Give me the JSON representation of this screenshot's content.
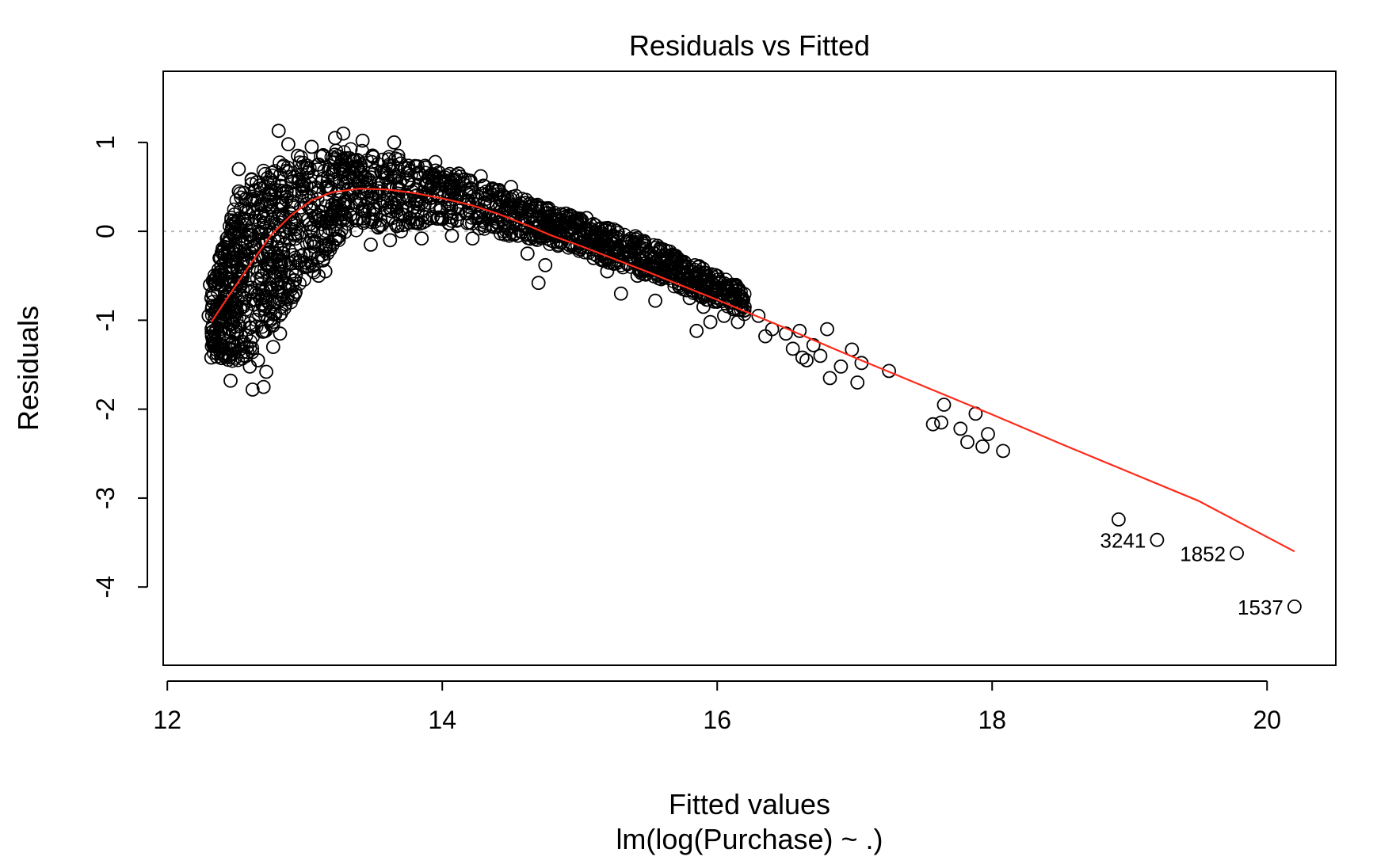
{
  "chart_data": {
    "type": "scatter",
    "title": "Residuals vs Fitted",
    "xlabel": "Fitted values",
    "subtitle": "lm(log(Purchase) ~ .)",
    "ylabel": "Residuals",
    "xlim": [
      11.97,
      20.5
    ],
    "ylim": [
      -4.88,
      1.8
    ],
    "xticks": [
      "12",
      "14",
      "16",
      "18",
      "20"
    ],
    "yticks": [
      "-4",
      "-3",
      "-2",
      "-1",
      "0",
      "1"
    ],
    "reference_line": {
      "y": 0,
      "style": "dotted",
      "color": "#bbbbbb"
    },
    "colors": {
      "points": "#000000",
      "smooth": "#ff2a1a"
    },
    "marker": "open-circle",
    "points": [
      [
        12.3,
        -0.95
      ],
      [
        12.31,
        -0.6
      ],
      [
        12.32,
        -0.75
      ],
      [
        12.33,
        -1.22
      ],
      [
        12.32,
        -1.42
      ],
      [
        12.35,
        -0.9
      ],
      [
        12.38,
        -0.3
      ],
      [
        12.4,
        -0.55
      ],
      [
        12.42,
        -0.8
      ],
      [
        12.45,
        -1.1
      ],
      [
        12.46,
        -1.68
      ],
      [
        12.48,
        -0.2
      ],
      [
        12.5,
        0.1
      ],
      [
        12.52,
        0.45
      ],
      [
        12.52,
        0.7
      ],
      [
        12.55,
        -0.45
      ],
      [
        12.58,
        -1.3
      ],
      [
        12.6,
        -1.52
      ],
      [
        12.62,
        -1.78
      ],
      [
        12.65,
        0.55
      ],
      [
        12.66,
        -1.45
      ],
      [
        12.68,
        0.3
      ],
      [
        12.7,
        -1.75
      ],
      [
        12.72,
        -1.58
      ],
      [
        12.75,
        -0.9
      ],
      [
        12.77,
        -1.3
      ],
      [
        12.8,
        -0.6
      ],
      [
        12.81,
        1.13
      ],
      [
        12.82,
        -1.15
      ],
      [
        12.85,
        -0.15
      ],
      [
        12.86,
        -0.82
      ],
      [
        12.88,
        0.98
      ],
      [
        12.9,
        0.1
      ],
      [
        12.95,
        0.85
      ],
      [
        13.0,
        -0.35
      ],
      [
        13.05,
        0.95
      ],
      [
        13.1,
        -0.5
      ],
      [
        13.12,
        0.55
      ],
      [
        13.15,
        -0.45
      ],
      [
        13.2,
        0.3
      ],
      [
        13.22,
        1.05
      ],
      [
        13.28,
        1.1
      ],
      [
        13.35,
        0.8
      ],
      [
        13.4,
        0.35
      ],
      [
        13.42,
        1.02
      ],
      [
        13.45,
        0.55
      ],
      [
        13.48,
        -0.15
      ],
      [
        13.5,
        0.2
      ],
      [
        13.58,
        0.65
      ],
      [
        13.62,
        -0.1
      ],
      [
        13.65,
        1.0
      ],
      [
        13.68,
        0.85
      ],
      [
        13.7,
        0.0
      ],
      [
        13.75,
        0.55
      ],
      [
        13.82,
        0.35
      ],
      [
        13.85,
        -0.08
      ],
      [
        13.9,
        0.6
      ],
      [
        13.95,
        0.78
      ],
      [
        14.0,
        0.15
      ],
      [
        14.05,
        0.5
      ],
      [
        14.07,
        -0.05
      ],
      [
        14.12,
        0.65
      ],
      [
        14.18,
        0.2
      ],
      [
        14.22,
        -0.08
      ],
      [
        14.28,
        0.62
      ],
      [
        14.35,
        0.3
      ],
      [
        14.4,
        0.05
      ],
      [
        14.45,
        0.38
      ],
      [
        14.5,
        0.5
      ],
      [
        14.55,
        -0.05
      ],
      [
        14.58,
        0.15
      ],
      [
        14.62,
        -0.25
      ],
      [
        14.7,
        -0.58
      ],
      [
        14.75,
        -0.38
      ],
      [
        14.8,
        0.1
      ],
      [
        14.85,
        -0.1
      ],
      [
        14.9,
        0.2
      ],
      [
        15.0,
        -0.2
      ],
      [
        15.05,
        0.15
      ],
      [
        15.1,
        -0.3
      ],
      [
        15.15,
        -0.1
      ],
      [
        15.2,
        -0.45
      ],
      [
        15.25,
        -0.25
      ],
      [
        15.3,
        -0.7
      ],
      [
        15.38,
        -0.12
      ],
      [
        15.42,
        -0.5
      ],
      [
        15.48,
        -0.2
      ],
      [
        15.55,
        -0.78
      ],
      [
        15.6,
        -0.45
      ],
      [
        15.7,
        -0.5
      ],
      [
        15.75,
        -0.42
      ],
      [
        15.8,
        -0.75
      ],
      [
        15.85,
        -1.12
      ],
      [
        15.9,
        -0.85
      ],
      [
        15.95,
        -1.02
      ],
      [
        16.0,
        -0.78
      ],
      [
        16.05,
        -0.95
      ],
      [
        16.1,
        -0.62
      ],
      [
        16.15,
        -1.02
      ],
      [
        16.2,
        -0.85
      ],
      [
        16.3,
        -0.95
      ],
      [
        16.35,
        -1.18
      ],
      [
        16.4,
        -1.1
      ],
      [
        16.5,
        -1.15
      ],
      [
        16.55,
        -1.32
      ],
      [
        16.6,
        -1.12
      ],
      [
        16.62,
        -1.42
      ],
      [
        16.65,
        -1.45
      ],
      [
        16.7,
        -1.28
      ],
      [
        16.75,
        -1.4
      ],
      [
        16.8,
        -1.1
      ],
      [
        16.82,
        -1.65
      ],
      [
        16.9,
        -1.52
      ],
      [
        16.98,
        -1.33
      ],
      [
        17.02,
        -1.7
      ],
      [
        17.05,
        -1.48
      ],
      [
        17.25,
        -1.57
      ],
      [
        17.57,
        -2.17
      ],
      [
        17.63,
        -2.15
      ],
      [
        17.65,
        -1.95
      ],
      [
        17.77,
        -2.22
      ],
      [
        17.82,
        -2.37
      ],
      [
        17.88,
        -2.05
      ],
      [
        17.93,
        -2.42
      ],
      [
        17.97,
        -2.28
      ],
      [
        18.08,
        -2.47
      ],
      [
        18.92,
        -3.24
      ],
      [
        19.2,
        -3.47
      ],
      [
        19.78,
        -3.62
      ],
      [
        20.2,
        -4.22
      ]
    ],
    "dense_bands": [
      {
        "x": [
          12.32,
          12.55
        ],
        "y_low": [
          -1.4,
          -1.5
        ],
        "y_high": [
          -0.6,
          0.6
        ]
      },
      {
        "x": [
          12.55,
          12.85
        ],
        "y_low": [
          -1.5,
          -0.9
        ],
        "y_high": [
          0.6,
          0.8
        ]
      },
      {
        "x": [
          12.85,
          13.3
        ],
        "y_low": [
          -0.9,
          0.0
        ],
        "y_high": [
          0.8,
          0.95
        ]
      },
      {
        "x": [
          13.3,
          14.0
        ],
        "y_low": [
          0.0,
          0.1
        ],
        "y_high": [
          0.95,
          0.7
        ]
      },
      {
        "x": [
          14.0,
          14.8
        ],
        "y_low": [
          0.1,
          -0.15
        ],
        "y_high": [
          0.7,
          0.25
        ]
      },
      {
        "x": [
          14.8,
          15.5
        ],
        "y_low": [
          -0.15,
          -0.5
        ],
        "y_high": [
          0.25,
          -0.1
        ]
      },
      {
        "x": [
          15.5,
          16.2
        ],
        "y_low": [
          -0.5,
          -0.95
        ],
        "y_high": [
          -0.1,
          -0.65
        ]
      }
    ],
    "smooth_line": [
      [
        12.32,
        -1.02
      ],
      [
        12.45,
        -0.72
      ],
      [
        12.6,
        -0.38
      ],
      [
        12.75,
        -0.05
      ],
      [
        12.9,
        0.18
      ],
      [
        13.05,
        0.35
      ],
      [
        13.2,
        0.44
      ],
      [
        13.4,
        0.48
      ],
      [
        13.6,
        0.47
      ],
      [
        13.8,
        0.43
      ],
      [
        14.0,
        0.37
      ],
      [
        14.2,
        0.3
      ],
      [
        14.4,
        0.2
      ],
      [
        14.6,
        0.08
      ],
      [
        14.8,
        -0.05
      ],
      [
        15.0,
        -0.16
      ],
      [
        15.5,
        -0.46
      ],
      [
        16.0,
        -0.77
      ],
      [
        16.5,
        -1.09
      ],
      [
        17.0,
        -1.42
      ],
      [
        17.5,
        -1.74
      ],
      [
        18.0,
        -2.06
      ],
      [
        18.5,
        -2.39
      ],
      [
        19.0,
        -2.71
      ],
      [
        19.5,
        -3.03
      ],
      [
        20.2,
        -3.6
      ]
    ],
    "annotations": [
      {
        "text": "3241",
        "x": 19.2,
        "y": -3.47
      },
      {
        "text": "1852",
        "x": 19.78,
        "y": -3.62
      },
      {
        "text": "1537",
        "x": 20.2,
        "y": -4.22
      }
    ]
  }
}
